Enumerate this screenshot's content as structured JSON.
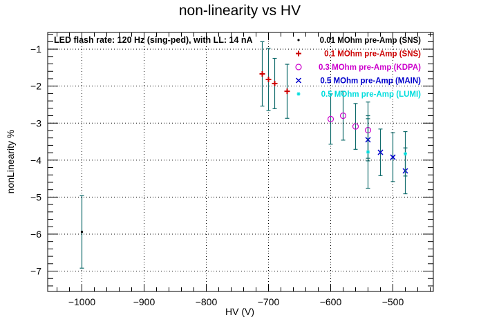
{
  "chart_data": {
    "type": "scatter",
    "title": "non-linearity vs HV",
    "xlabel": "HV (V)",
    "ylabel": "nonLinearity %",
    "xlim": [
      -1055,
      -435
    ],
    "ylim": [
      -7.55,
      -0.55
    ],
    "x_ticks": [
      -1000,
      -900,
      -800,
      -700,
      -600,
      -500
    ],
    "y_ticks": [
      -7,
      -6,
      -5,
      -4,
      -3,
      -2,
      -1
    ],
    "x_minor_step": 20,
    "y_minor_step": 0.2,
    "grid": true,
    "annotation": "LED flash rate: 120 Hz  (sing-ped), with LL: 14 nA",
    "legend_position": "top-right",
    "series": [
      {
        "name": "0.01 MOhm pre-Amp (SNS)",
        "marker": "dot",
        "color": "#000000",
        "error_color": "#0f6b6b",
        "points": [
          {
            "x": -1000,
            "y": -5.94,
            "err": 0.98
          }
        ]
      },
      {
        "name": "0.1 MOhm pre-Amp (SNS)",
        "marker": "plus",
        "color": "#cc0000",
        "error_color": "#0f6b6b",
        "points": [
          {
            "x": -710,
            "y": -1.67,
            "err": 0.87
          },
          {
            "x": -700,
            "y": -1.82,
            "err": 0.84
          },
          {
            "x": -690,
            "y": -1.93,
            "err": 0.68
          },
          {
            "x": -670,
            "y": -2.14,
            "err": 0.73
          }
        ]
      },
      {
        "name": "0.3 MOhm pre-Amp (KDPA)",
        "marker": "circle",
        "color": "#cc00cc",
        "error_color": "#0f6b6b",
        "points": [
          {
            "x": -600,
            "y": -2.89,
            "err": 0.68
          },
          {
            "x": -580,
            "y": -2.8,
            "err": 0.66
          },
          {
            "x": -560,
            "y": -3.09,
            "err": 0.62
          },
          {
            "x": -540,
            "y": -3.19,
            "err": 0.76
          }
        ]
      },
      {
        "name": "0.5 MOhm pre-Amp (MAIN)",
        "marker": "cross",
        "color": "#0000cc",
        "error_color": "#0f6b6b",
        "points": [
          {
            "x": -540,
            "y": -3.45,
            "err": 0.57
          },
          {
            "x": -520,
            "y": -3.79,
            "err": 0.63
          },
          {
            "x": -500,
            "y": -3.92,
            "err": 0.66
          },
          {
            "x": -480,
            "y": -4.29,
            "err": 0.62
          }
        ]
      },
      {
        "name": "0.5 MOhm pre-Amp (LUMI)",
        "marker": "star",
        "color": "#00dddd",
        "error_color": "#0f6b6b",
        "points": [
          {
            "x": -540,
            "y": -3.78,
            "err": 0.98
          },
          {
            "x": -480,
            "y": -3.83,
            "err": 0.6
          }
        ]
      }
    ]
  }
}
